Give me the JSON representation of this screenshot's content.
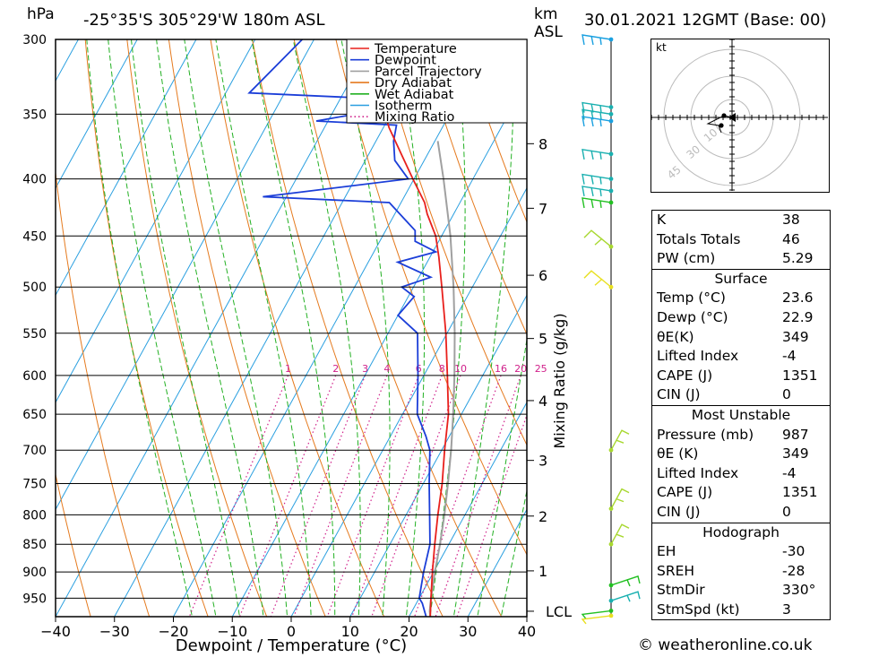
{
  "header": {
    "pressure_unit": "hPa",
    "location": "-25°35'S  305°29'W  180m  ASL",
    "km_unit": "km",
    "asl": "ASL",
    "date": "30.01.2021  12GMT  (Base: 00)"
  },
  "legend": [
    {
      "label": "Temperature",
      "color": "#e8201c",
      "style": "solid"
    },
    {
      "label": "Dewpoint",
      "color": "#1b3ed8",
      "style": "solid"
    },
    {
      "label": "Parcel Trajectory",
      "color": "#a0a0a0",
      "style": "solid"
    },
    {
      "label": "Dry Adiabat",
      "color": "#e57a1e",
      "style": "solid"
    },
    {
      "label": "Wet Adiabat",
      "color": "#22b022",
      "style": "solid"
    },
    {
      "label": "Isotherm",
      "color": "#2a9fe0",
      "style": "solid"
    },
    {
      "label": "Mixing Ratio",
      "color": "#d0208a",
      "style": "dotted"
    }
  ],
  "chart_data": {
    "type": "line",
    "title": "Skew-T log-P diagram",
    "xlabel": "Dewpoint / Temperature (°C)",
    "ylabel": "hPa",
    "ylabel_right": "Mixing Ratio (g/kg)",
    "x_ticks": [
      -40,
      -30,
      -20,
      -10,
      0,
      10,
      20,
      30,
      40
    ],
    "xlim": [
      -40,
      40
    ],
    "pressure_levels": [
      300,
      350,
      400,
      450,
      500,
      550,
      600,
      650,
      700,
      750,
      800,
      850,
      900,
      950
    ],
    "ylim_hpa": [
      987,
      300
    ],
    "km_ticks": [
      {
        "label": "8",
        "p": 372
      },
      {
        "label": "7",
        "p": 425
      },
      {
        "label": "6",
        "p": 488
      },
      {
        "label": "5",
        "p": 556
      },
      {
        "label": "4",
        "p": 632
      },
      {
        "label": "3",
        "p": 715
      },
      {
        "label": "2",
        "p": 802
      },
      {
        "label": "1",
        "p": 898
      },
      {
        "label": "LCL",
        "p": 976
      }
    ],
    "mixing_ratio_labels": [
      "1",
      "2",
      "3",
      "4",
      "6",
      "8",
      "10",
      "16",
      "20",
      "25"
    ],
    "mixing_ratio_values": [
      1,
      2,
      3,
      4,
      6,
      8,
      10,
      16,
      20,
      25
    ],
    "temperature": [
      [
        987,
        23.6
      ],
      [
        950,
        22.0
      ],
      [
        900,
        19.8
      ],
      [
        850,
        17.6
      ],
      [
        800,
        15.4
      ],
      [
        750,
        13.2
      ],
      [
        700,
        10.5
      ],
      [
        650,
        7.8
      ],
      [
        600,
        4.0
      ],
      [
        550,
        -0.2
      ],
      [
        500,
        -5.2
      ],
      [
        470,
        -8.5
      ],
      [
        450,
        -11.0
      ],
      [
        430,
        -14.5
      ],
      [
        420,
        -16.0
      ],
      [
        400,
        -20.2
      ],
      [
        380,
        -24.5
      ],
      [
        360,
        -29.0
      ],
      [
        355,
        -30.0
      ],
      [
        340,
        -31.5
      ],
      [
        320,
        -35.0
      ],
      [
        300,
        -39.5
      ]
    ],
    "dewpoint": [
      [
        987,
        22.9
      ],
      [
        960,
        21.0
      ],
      [
        950,
        20.0
      ],
      [
        900,
        18.3
      ],
      [
        850,
        16.8
      ],
      [
        800,
        14.0
      ],
      [
        750,
        11.0
      ],
      [
        700,
        8.0
      ],
      [
        680,
        6.0
      ],
      [
        650,
        2.5
      ],
      [
        600,
        -1.0
      ],
      [
        550,
        -5.0
      ],
      [
        530,
        -10.0
      ],
      [
        510,
        -9.0
      ],
      [
        500,
        -12.0
      ],
      [
        490,
        -8.0
      ],
      [
        475,
        -15.0
      ],
      [
        465,
        -9.5
      ],
      [
        455,
        -14.0
      ],
      [
        445,
        -15.0
      ],
      [
        420,
        -22.0
      ],
      [
        415,
        -44.0
      ],
      [
        400,
        -21.0
      ],
      [
        385,
        -25.0
      ],
      [
        370,
        -27.0
      ],
      [
        358,
        -28.0
      ],
      [
        355,
        -42.0
      ],
      [
        345,
        -30.0
      ],
      [
        340,
        -28.0
      ],
      [
        335,
        -56.0
      ],
      [
        300,
        -52.0
      ]
    ],
    "parcel": [
      [
        987,
        23.6
      ],
      [
        976,
        23.0
      ],
      [
        950,
        22.0
      ],
      [
        900,
        20.2
      ],
      [
        850,
        18.5
      ],
      [
        800,
        16.5
      ],
      [
        750,
        14.2
      ],
      [
        700,
        11.6
      ],
      [
        650,
        8.6
      ],
      [
        600,
        5.2
      ],
      [
        550,
        1.3
      ],
      [
        500,
        -3.2
      ],
      [
        450,
        -8.5
      ],
      [
        400,
        -15.0
      ],
      [
        370,
        -19.5
      ]
    ],
    "wind_barbs": [
      {
        "p": 300,
        "color": "#1aa0e0"
      },
      {
        "p": 345,
        "color": "#1ab0b0"
      },
      {
        "p": 350,
        "color": "#1ab0b0"
      },
      {
        "p": 355,
        "color": "#1aa0e0"
      },
      {
        "p": 380,
        "color": "#1ab0b0"
      },
      {
        "p": 400,
        "color": "#1ab0b0"
      },
      {
        "p": 410,
        "color": "#1ab0b0"
      },
      {
        "p": 420,
        "color": "#22c022"
      },
      {
        "p": 460,
        "color": "#a8d830"
      },
      {
        "p": 500,
        "color": "#e8e020"
      },
      {
        "p": 700,
        "color": "#a8d830"
      },
      {
        "p": 790,
        "color": "#a8d830"
      },
      {
        "p": 850,
        "color": "#a8d830"
      },
      {
        "p": 925,
        "color": "#22c022"
      },
      {
        "p": 955,
        "color": "#1ab0b0"
      },
      {
        "p": 975,
        "color": "#22c022"
      },
      {
        "p": 985,
        "color": "#e8e020"
      }
    ]
  },
  "hodograph": {
    "unit": "kt",
    "ring_labels": [
      "10",
      "30",
      "45"
    ]
  },
  "indices": {
    "basic": [
      {
        "k": "K",
        "v": "38"
      },
      {
        "k": "Totals Totals",
        "v": "46"
      },
      {
        "k": "PW (cm)",
        "v": "5.29"
      }
    ],
    "surface_title": "Surface",
    "surface": [
      {
        "k": "Temp (°C)",
        "v": "23.6"
      },
      {
        "k": "Dewp (°C)",
        "v": "22.9"
      },
      {
        "k": "θE(K)",
        "v": "349"
      },
      {
        "k": "Lifted Index",
        "v": "-4"
      },
      {
        "k": "CAPE (J)",
        "v": "1351"
      },
      {
        "k": "CIN (J)",
        "v": "0"
      }
    ],
    "mu_title": "Most Unstable",
    "mu": [
      {
        "k": "Pressure (mb)",
        "v": "987"
      },
      {
        "k": "θE (K)",
        "v": "349"
      },
      {
        "k": "Lifted Index",
        "v": "-4"
      },
      {
        "k": "CAPE (J)",
        "v": "1351"
      },
      {
        "k": "CIN (J)",
        "v": "0"
      }
    ],
    "hodo_title": "Hodograph",
    "hodo": [
      {
        "k": "EH",
        "v": "-30"
      },
      {
        "k": "SREH",
        "v": "-28"
      },
      {
        "k": "StmDir",
        "v": "330°"
      },
      {
        "k": "StmSpd (kt)",
        "v": "3"
      }
    ]
  },
  "credit": "© weatheronline.co.uk"
}
